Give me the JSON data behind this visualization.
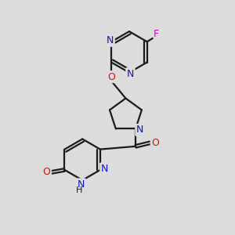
{
  "background_color": "#dcdcdc",
  "bond_color": "#1a1a1a",
  "nitrogen_color": "#1414cc",
  "oxygen_color": "#cc1414",
  "fluorine_color": "#cc00cc",
  "bond_width": 1.6,
  "figsize": [
    3.0,
    3.0
  ],
  "dpi": 100,
  "xlim": [
    0,
    10
  ],
  "ylim": [
    0,
    10
  ]
}
